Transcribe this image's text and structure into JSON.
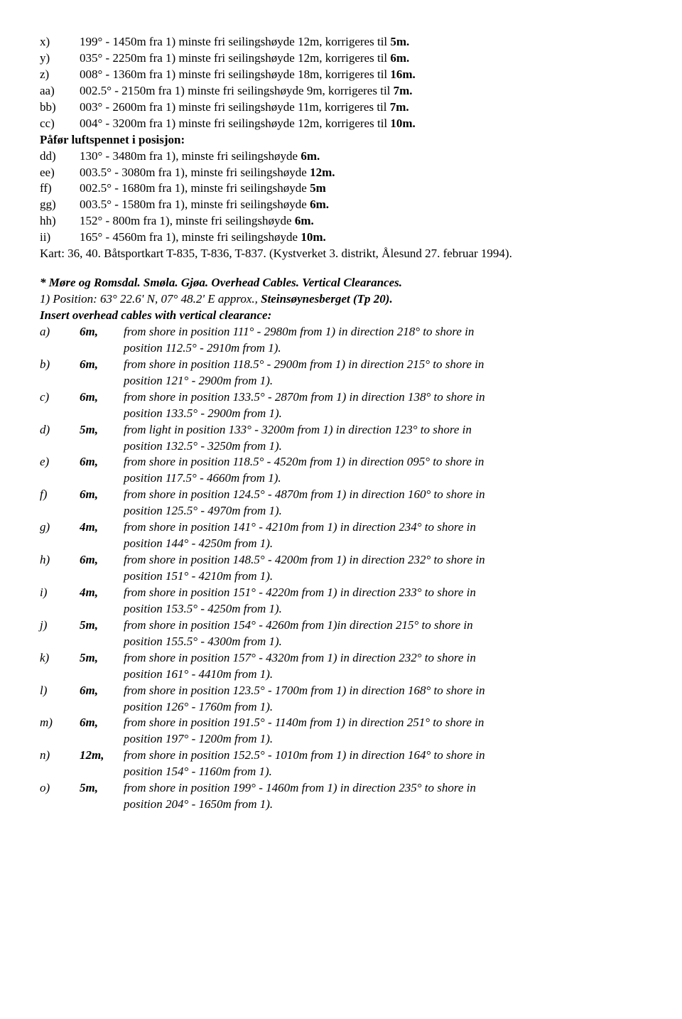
{
  "block1": {
    "items": [
      {
        "lbl": "x)",
        "t1": "199° - 1450m fra 1) minste fri seilingshøyde 12m, korrigeres til ",
        "b": "5m."
      },
      {
        "lbl": "y)",
        "t1": "035° - 2250m fra 1) minste fri seilingshøyde 12m, korrigeres til ",
        "b": "6m."
      },
      {
        "lbl": "z)",
        "t1": "008° - 1360m fra 1) minste fri seilingshøyde 18m, korrigeres til ",
        "b": "16m."
      },
      {
        "lbl": "aa)",
        "t1": "002.5° - 2150m fra 1) minste fri seilingshøyde 9m, korrigeres til ",
        "b": "7m."
      },
      {
        "lbl": "bb)",
        "t1": "003° - 2600m fra 1) minste fri seilingshøyde   11m, korrigeres til ",
        "b": "7m."
      },
      {
        "lbl": "cc)",
        "t1": "004° - 3200m fra 1) minste fri seilingshøyde 12m, korrigeres til ",
        "b": "10m."
      }
    ],
    "pafor": "Påfør luftspennet i posisjon:",
    "items2": [
      {
        "lbl": "dd)",
        "t1": "130° - 3480m fra 1), minste fri seilingshøyde ",
        "b": "6m."
      },
      {
        "lbl": "ee)",
        "t1": "003.5° - 3080m fra 1), minste fri seilingshøyde ",
        "b": "12m."
      },
      {
        "lbl": "ff)",
        "t1": "002.5° - 1680m fra 1), minste fri seilingshøyde ",
        "b": "5m"
      },
      {
        "lbl": "gg)",
        "t1": "003.5° - 1580m fra 1), minste fri seilingshøyde ",
        "b": "6m."
      },
      {
        "lbl": "hh)",
        "t1": "152° - 800m fra 1), minste fri seilingshøyde ",
        "b": "6m."
      },
      {
        "lbl": "ii)",
        "t1": "165° - 4560m fra 1), minste fri seilingshøyde ",
        "b": "10m."
      }
    ],
    "kart": "Kart: 36, 40. Båtsportkart T-835, T-836, T-837. (Kystverket 3. distrikt, Ålesund 27. februar 1994)."
  },
  "block2": {
    "title": "* Møre og Romsdal. Smøla. Gjøa. Overhead Cables. Vertical Clearances.",
    "pos1": "1) Position: 63° 22.6' N, 07° 48.2' E approx., ",
    "pos1b": "Steinsøynesberget (Tp 20).",
    "insert": "Insert overhead cables with vertical clearance:",
    "items": [
      {
        "lbl": "a)",
        "clr": "6m,",
        "l1": "from shore in position 111° - 2980m from 1) in direction 218° to shore in",
        "l2": "position 112.5° - 2910m from 1)."
      },
      {
        "lbl": "b)",
        "clr": "6m,",
        "l1": "from shore in position 118.5° - 2900m from 1) in direction 215° to shore in",
        "l2": "position 121° - 2900m from  1)."
      },
      {
        "lbl": "c)",
        "clr": "6m,",
        "l1": "from shore in position 133.5° - 2870m from 1) in direction 138° to shore in",
        "l2": "position 133.5° - 2900m from 1)."
      },
      {
        "lbl": "d)",
        "clr": "5m,",
        "l1": "from light in position 133° - 3200m from 1) in direction 123° to shore in",
        "l2": "position 132.5° - 3250m from 1)."
      },
      {
        "lbl": "e)",
        "clr": "6m,",
        "l1": "from shore in position 118.5° - 4520m from 1) in direction 095° to shore in",
        "l2": "position 117.5° - 4660m from  1)."
      },
      {
        "lbl": "f)",
        "clr": "6m,",
        "l1": "from shore in position 124.5° - 4870m from 1) in direction 160° to shore in",
        "l2": "position 125.5° - 4970m from 1)."
      },
      {
        "lbl": "g)",
        "clr": "4m,",
        "l1": "from shore in position 141° - 4210m from 1) in direction 234° to shore in",
        "l2": "position 144° - 4250m from 1)."
      },
      {
        "lbl": "h)",
        "clr": "6m,",
        "l1": "from shore in position 148.5° - 4200m from 1) in direction 232° to shore in",
        "l2": "position 151° - 4210m from 1)."
      },
      {
        "lbl": "i)",
        "clr": "4m,",
        "l1": "from shore in position 151° - 4220m from 1) in direction 233° to shore in",
        "l2": "position 153.5° - 4250m from 1)."
      },
      {
        "lbl": "j)",
        "clr": "5m,",
        "l1": "from shore in position 154° - 4260m from 1)in direction 215° to shore in",
        "l2": "position 155.5° - 4300m from 1)."
      },
      {
        "lbl": "k)",
        "clr": "5m,",
        "l1": "from shore in position 157° - 4320m from 1) in direction 232° to shore in",
        "l2": "position 161° - 4410m from 1)."
      },
      {
        "lbl": "l)",
        "clr": "6m,",
        "l1": "from shore in position 123.5° - 1700m from 1) in direction 168° to shore in",
        "l2": "position 126° - 1760m from 1)."
      },
      {
        "lbl": "m)",
        "clr": "6m,",
        "l1": "from shore in position 191.5° - 1140m from 1) in direction 251° to shore in",
        "l2": "position 197° - 1200m from 1)."
      },
      {
        "lbl": "n)",
        "clr": "12m,",
        "l1": "from shore in position 152.5° - 1010m from 1) in direction 164° to shore in",
        "l2": "position 154° - 1160m from 1)."
      },
      {
        "lbl": "o)",
        "clr": "5m,",
        "l1": "from shore in position 199° - 1460m from  1) in direction 235° to shore in",
        "l2": "position 204° - 1650m from 1)."
      }
    ]
  }
}
